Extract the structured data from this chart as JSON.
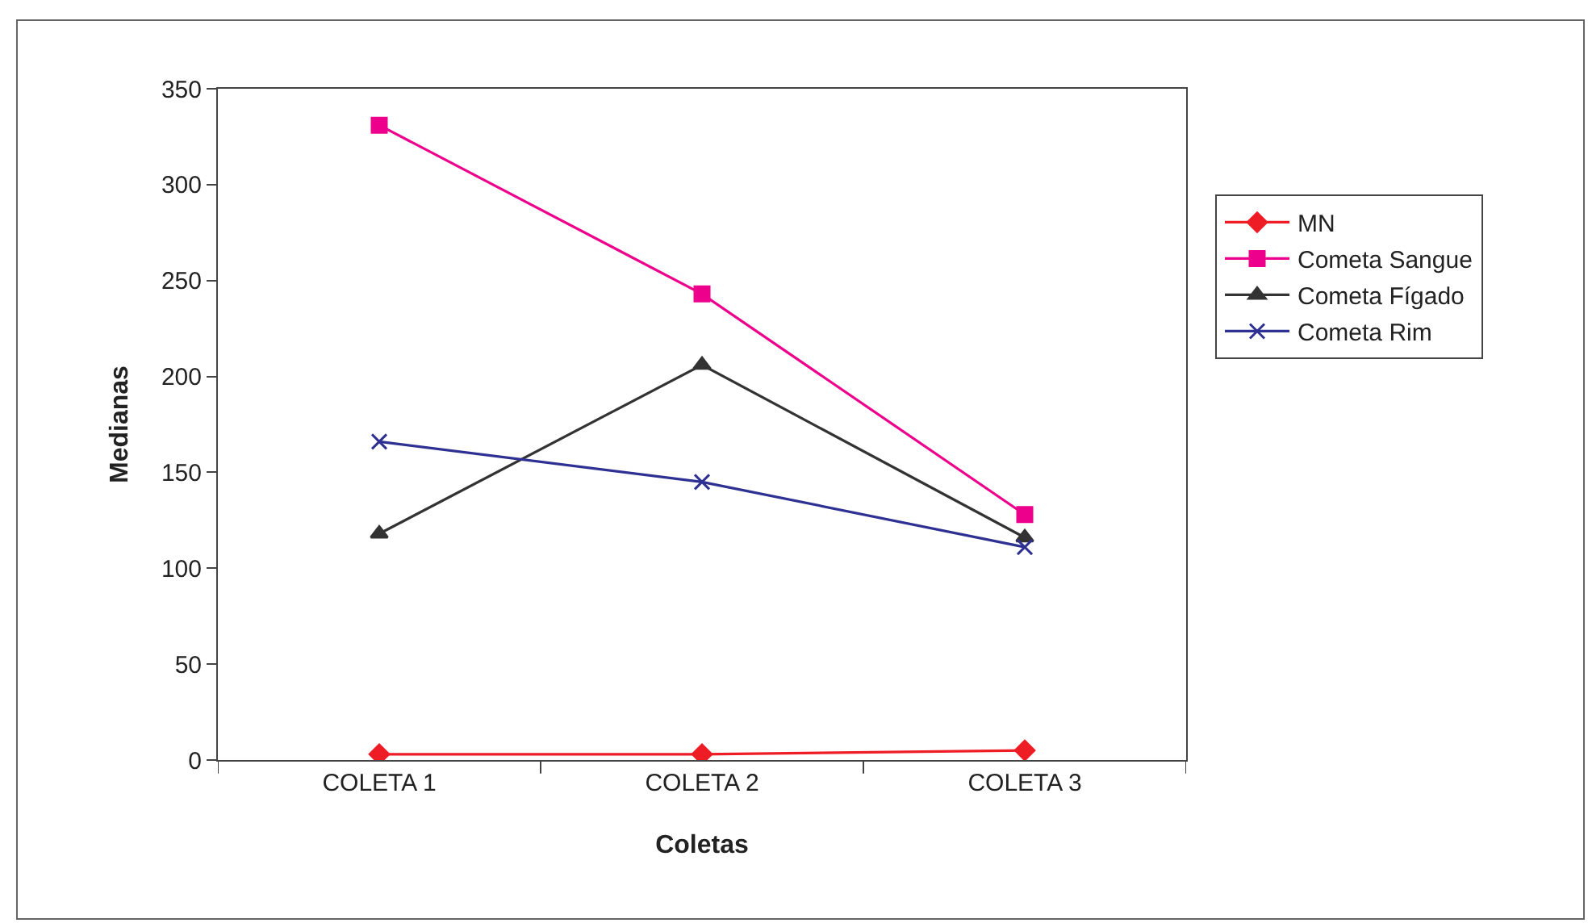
{
  "chart_data": {
    "type": "line",
    "xlabel": "Coletas",
    "ylabel": "Medianas",
    "categories": [
      "COLETA 1",
      "COLETA 2",
      "COLETA 3"
    ],
    "series": [
      {
        "name": "MN",
        "color": "#ee1c25",
        "values": [
          3,
          3,
          5
        ],
        "marker": "diamond"
      },
      {
        "name": "Cometa Sangue",
        "color": "#ec008c",
        "values": [
          331,
          243,
          128
        ],
        "marker": "square"
      },
      {
        "name": "Cometa Fígado",
        "color": "#333333",
        "values": [
          118,
          206,
          116
        ],
        "marker": "triangle"
      },
      {
        "name": "Cometa Rim",
        "color": "#2e3192",
        "values": [
          166,
          145,
          111
        ],
        "marker": "cross"
      }
    ],
    "ylim": [
      0,
      350
    ],
    "yticks": [
      0,
      50,
      100,
      150,
      200,
      250,
      300,
      350
    ],
    "grid": false,
    "legend": "right"
  }
}
